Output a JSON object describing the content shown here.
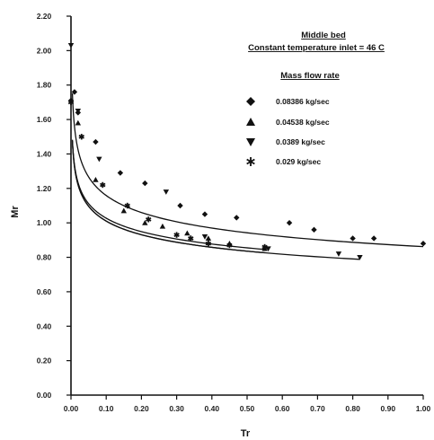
{
  "chart_data": {
    "type": "scatter",
    "title": "Middle bed",
    "subtitle": "Constant temperature inlet = 46 C",
    "legend_title": "Mass flow rate",
    "xlabel": "Tr",
    "ylabel": "Mr",
    "xlim": [
      0,
      1.0
    ],
    "ylim": [
      0,
      2.2
    ],
    "x_ticks": [
      "0.00",
      "0.10",
      "0.20",
      "0.30",
      "0.40",
      "0.50",
      "0.60",
      "0.70",
      "0.80",
      "0.90",
      "1.00"
    ],
    "y_ticks": [
      "0.00",
      "0.20",
      "0.40",
      "0.60",
      "0.80",
      "1.00",
      "1.20",
      "1.40",
      "1.60",
      "1.80",
      "2.00",
      "2.20"
    ],
    "grid": false,
    "legend_position": "top-right",
    "series": [
      {
        "name": "0.08386 kg/sec",
        "marker": "diamond",
        "x": [
          0.0,
          0.01,
          0.02,
          0.07,
          0.14,
          0.21,
          0.31,
          0.38,
          0.47,
          0.62,
          0.69,
          0.8,
          0.86,
          1.0
        ],
        "y": [
          1.71,
          1.76,
          1.64,
          1.47,
          1.29,
          1.23,
          1.1,
          1.05,
          1.03,
          1.0,
          0.96,
          0.91,
          0.91,
          0.88
        ],
        "fit": {
          "a": 0.862,
          "b": 0.1285
        }
      },
      {
        "name": "0.04538 kg/sec",
        "marker": "triangle-up",
        "x": [
          0.02,
          0.07,
          0.15,
          0.21,
          0.26,
          0.33,
          0.39,
          0.45,
          0.55
        ],
        "y": [
          1.58,
          1.25,
          1.07,
          1.0,
          0.98,
          0.94,
          0.91,
          0.88,
          0.85
        ],
        "fit": {
          "a": 0.79,
          "b": 0.114
        }
      },
      {
        "name": "0.0389 kg/sec",
        "marker": "triangle-down",
        "x": [
          0.0,
          0.02,
          0.08,
          0.27,
          0.38,
          0.56,
          0.76,
          0.82
        ],
        "y": [
          2.03,
          1.65,
          1.37,
          1.18,
          0.92,
          0.85,
          0.82,
          0.8
        ],
        "fit": {
          "a": 0.77,
          "b": 0.118
        }
      },
      {
        "name": "0.029 kg/sec",
        "marker": "star",
        "x": [
          0.0,
          0.03,
          0.09,
          0.16,
          0.22,
          0.3,
          0.34,
          0.39,
          0.45,
          0.55
        ],
        "y": [
          1.7,
          1.5,
          1.22,
          1.1,
          1.02,
          0.93,
          0.91,
          0.88,
          0.87,
          0.86
        ],
        "fit": {
          "a": 0.77,
          "b": 0.118
        }
      }
    ]
  },
  "colors": {
    "ink": "#111111",
    "background": "#ffffff"
  },
  "tick_mark_label": "·",
  "bottom_note": "0.00"
}
